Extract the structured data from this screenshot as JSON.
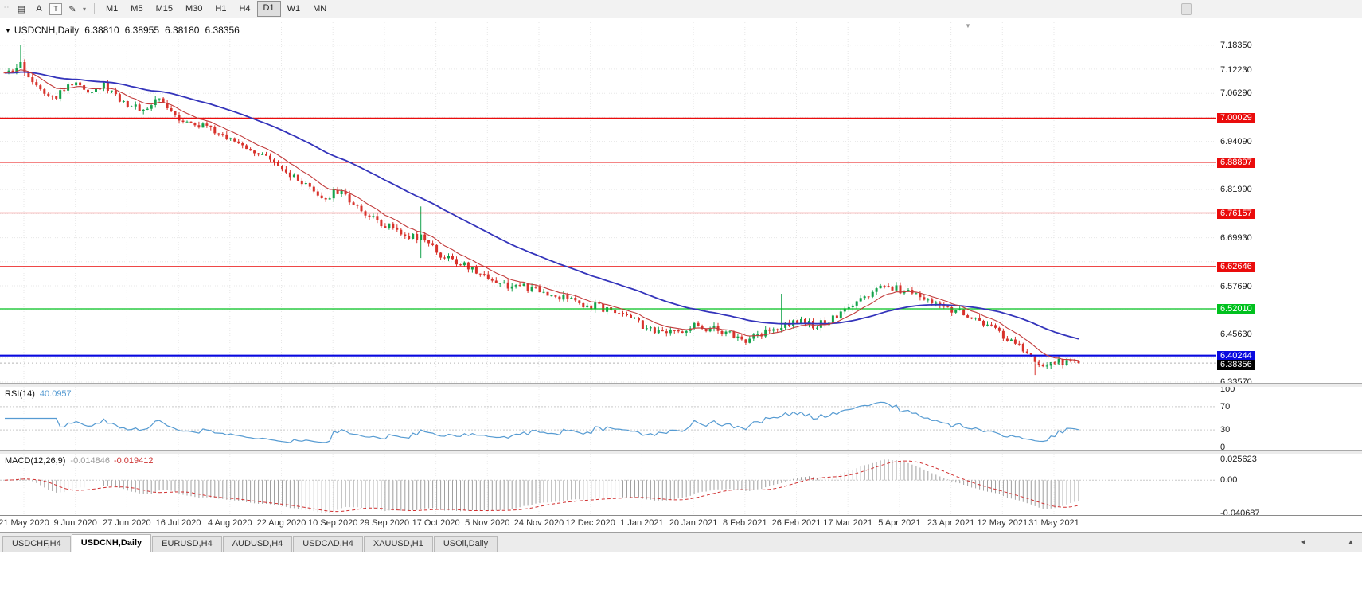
{
  "toolbar": {
    "icons": [
      {
        "name": "chart-list-icon",
        "glyph": "▤"
      },
      {
        "name": "annotation-tool-icon",
        "glyph": "A"
      },
      {
        "name": "text-tool-icon",
        "glyph": "T",
        "boxed": true
      },
      {
        "name": "draw-tool-icon",
        "glyph": "✎"
      },
      {
        "name": "dropdown-arrow-icon",
        "glyph": "▾",
        "small": true
      }
    ],
    "timeframes": [
      "M1",
      "M5",
      "M15",
      "M30",
      "H1",
      "H4",
      "D1",
      "W1",
      "MN"
    ],
    "active_timeframe": "D1"
  },
  "chart": {
    "collapse_glyph": "▼",
    "symbol": "USDCNH,Daily",
    "open": "6.38810",
    "high": "6.38955",
    "low": "6.38180",
    "close": "6.38356",
    "shift_marker_glyph": "▼"
  },
  "chart_data": {
    "type": "candlestick",
    "symbol": "USDCNH",
    "period": "Daily",
    "candle_count": 272,
    "candles_per_date_label": 13,
    "price_axis": {
      "top_price": 7.2416,
      "bottom_price": 6.3336,
      "grid_start": 6.3357,
      "grid_step": 0.0606,
      "labels": [
        {
          "text": "7.18350",
          "price": 7.1835
        },
        {
          "text": "7.12230",
          "price": 7.1223
        },
        {
          "text": "7.06290",
          "price": 7.0629
        },
        {
          "text": "6.94090",
          "price": 6.9409
        },
        {
          "text": "6.81990",
          "price": 6.8199
        },
        {
          "text": "6.69930",
          "price": 6.6993
        },
        {
          "text": "6.57690",
          "price": 6.5769
        },
        {
          "text": "6.45630",
          "price": 6.4563
        },
        {
          "text": "6.33570",
          "price": 6.3357
        }
      ]
    },
    "hlines": [
      {
        "price": 7.00029,
        "label": "7.00029",
        "color": "#ea0c0c",
        "width": 1.3
      },
      {
        "price": 6.88897,
        "label": "6.88897",
        "color": "#ea0c0c",
        "width": 1.3
      },
      {
        "price": 6.76157,
        "label": "6.76157",
        "color": "#ea0c0c",
        "width": 1.3
      },
      {
        "price": 6.62646,
        "label": "6.62646",
        "color": "#ea0c0c",
        "width": 1.3
      },
      {
        "price": 6.5201,
        "label": "6.52010",
        "color": "#00c11e",
        "width": 1.3
      },
      {
        "price": 6.40244,
        "label": "6.40244",
        "color": "#0a0adf",
        "width": 2.2
      }
    ],
    "current_price": {
      "label": "6.38356",
      "price": 6.38356,
      "color": "#000000"
    },
    "dates": [
      "21 May 2020",
      "9 Jun 2020",
      "27 Jun 2020",
      "16 Jul 2020",
      "4 Aug 2020",
      "22 Aug 2020",
      "10 Sep 2020",
      "29 Sep 2020",
      "17 Oct 2020",
      "5 Nov 2020",
      "24 Nov 2020",
      "12 Dec 2020",
      "1 Jan 2021",
      "20 Jan 2021",
      "8 Feb 2021",
      "26 Feb 2021",
      "17 Mar 2021",
      "5 Apr 2021",
      "23 Apr 2021",
      "12 May 2021",
      "31 May 2021"
    ],
    "path_anchors": [
      [
        0,
        7.105
      ],
      [
        4,
        7.132
      ],
      [
        9,
        7.075
      ],
      [
        13,
        7.058
      ],
      [
        17,
        7.088
      ],
      [
        21,
        7.072
      ],
      [
        25,
        7.082
      ],
      [
        31,
        7.035
      ],
      [
        35,
        7.022
      ],
      [
        39,
        7.048
      ],
      [
        45,
        6.995
      ],
      [
        51,
        6.975
      ],
      [
        57,
        6.945
      ],
      [
        63,
        6.92
      ],
      [
        69,
        6.875
      ],
      [
        75,
        6.835
      ],
      [
        80,
        6.795
      ],
      [
        84,
        6.815
      ],
      [
        89,
        6.78
      ],
      [
        93,
        6.745
      ],
      [
        97,
        6.73
      ],
      [
        101,
        6.705
      ],
      [
        105,
        6.7
      ],
      [
        108,
        6.672
      ],
      [
        112,
        6.645
      ],
      [
        117,
        6.625
      ],
      [
        122,
        6.6
      ],
      [
        127,
        6.58
      ],
      [
        132,
        6.572
      ],
      [
        137,
        6.558
      ],
      [
        142,
        6.545
      ],
      [
        147,
        6.53
      ],
      [
        152,
        6.52
      ],
      [
        157,
        6.508
      ],
      [
        162,
        6.472
      ],
      [
        166,
        6.455
      ],
      [
        170,
        6.462
      ],
      [
        174,
        6.478
      ],
      [
        179,
        6.468
      ],
      [
        184,
        6.452
      ],
      [
        188,
        6.44
      ],
      [
        192,
        6.462
      ],
      [
        196,
        6.478
      ],
      [
        200,
        6.492
      ],
      [
        204,
        6.478
      ],
      [
        208,
        6.492
      ],
      [
        212,
        6.512
      ],
      [
        216,
        6.542
      ],
      [
        220,
        6.566
      ],
      [
        223,
        6.578
      ],
      [
        227,
        6.566
      ],
      [
        231,
        6.552
      ],
      [
        235,
        6.538
      ],
      [
        239,
        6.52
      ],
      [
        243,
        6.502
      ],
      [
        247,
        6.482
      ],
      [
        251,
        6.46
      ],
      [
        255,
        6.432
      ],
      [
        259,
        6.392
      ],
      [
        263,
        6.373
      ],
      [
        267,
        6.388
      ],
      [
        271,
        6.3836
      ]
    ],
    "wick_spikes": [
      {
        "i": 4,
        "high": 7.1835
      },
      {
        "i": 105,
        "high": 6.778,
        "low": 6.648
      },
      {
        "i": 196,
        "high": 6.558
      },
      {
        "i": 260,
        "low": 6.3535
      }
    ],
    "last_candle": {
      "open": 6.3881,
      "high": 6.38955,
      "low": 6.3818,
      "close": 6.38356
    },
    "ma_fast_period": 10,
    "ma_slow_period": 45,
    "colors": {
      "up": "#13a24b",
      "down": "#d8332c",
      "ma_fast": "#c23b3b",
      "ma_slow": "#3434bb",
      "grid": "#e7e7e7"
    },
    "indicators": {
      "rsi": {
        "name": "RSI(14)",
        "period": 14,
        "value": "40.0957",
        "levels": [
          "100",
          "70",
          "30",
          "0"
        ],
        "line_color": "#569bd2"
      },
      "macd": {
        "name": "MACD(12,26,9)",
        "fast": 12,
        "slow": 26,
        "signal": 9,
        "main_value": "-0.014846",
        "signal_value": "-0.019412",
        "axis_labels": [
          "0.025623",
          "0.00",
          "-0.040687"
        ],
        "axis_values": [
          0.025623,
          0,
          -0.040687
        ],
        "hist_color": "#a0a0a0",
        "signal_color": "#d03030"
      }
    }
  },
  "tabs": {
    "items": [
      "USDCHF,H4",
      "USDCNH,Daily",
      "EURUSD,H4",
      "AUDUSD,H4",
      "USDCAD,H4",
      "XAUUSD,H1",
      "USOil,Daily"
    ],
    "active": "USDCNH,Daily",
    "scroll_left_glyph": "◀",
    "scroll_up_glyph": "▲"
  }
}
